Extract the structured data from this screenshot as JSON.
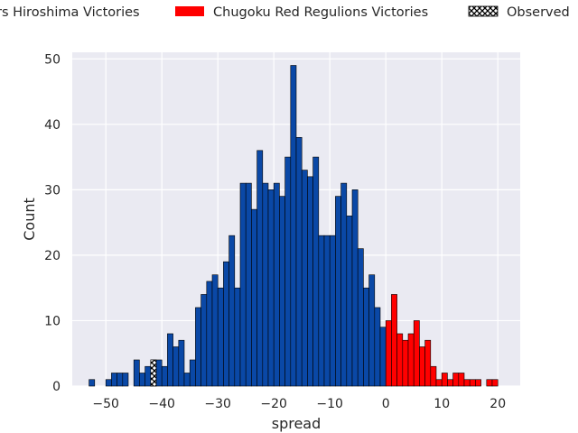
{
  "chart_data": {
    "type": "bar",
    "xlabel": "spread",
    "ylabel": "Count",
    "xlim": [
      -56,
      24
    ],
    "ylim": [
      0,
      51
    ],
    "x_ticks": [
      -50,
      -40,
      -30,
      -20,
      -10,
      0,
      10,
      20
    ],
    "y_ticks": [
      0,
      10,
      20,
      30,
      40,
      50
    ],
    "grid": true,
    "legend_placement": "top, above plot (cropped at left and right)",
    "bin_width": 1,
    "colors": {
      "background": "#eaeaf2",
      "grid": "#ffffff",
      "edge": "#000000"
    },
    "legend": [
      {
        "label": "rs Hiroshima Victories",
        "color": "#0a48a6",
        "swatch": "none"
      },
      {
        "label": "Chugoku Red Regulions Victories",
        "color": "#ff0000",
        "swatch": "rect"
      },
      {
        "label": "Observed",
        "color": "#000000",
        "swatch": "hatch"
      }
    ],
    "series": [
      {
        "name": "Hiroshima Victories",
        "color": "#0a48a6",
        "bins": [
          [
            -53,
            1
          ],
          [
            -50,
            1
          ],
          [
            -49,
            2
          ],
          [
            -48,
            2
          ],
          [
            -47,
            2
          ],
          [
            -45,
            4
          ],
          [
            -44,
            2
          ],
          [
            -43,
            3
          ],
          [
            -42,
            4
          ],
          [
            -41,
            4
          ],
          [
            -40,
            3
          ],
          [
            -39,
            8
          ],
          [
            -38,
            6
          ],
          [
            -37,
            7
          ],
          [
            -36,
            2
          ],
          [
            -35,
            4
          ],
          [
            -34,
            12
          ],
          [
            -33,
            14
          ],
          [
            -32,
            16
          ],
          [
            -31,
            17
          ],
          [
            -30,
            15
          ],
          [
            -29,
            19
          ],
          [
            -28,
            23
          ],
          [
            -27,
            15
          ],
          [
            -26,
            31
          ],
          [
            -25,
            31
          ],
          [
            -24,
            27
          ],
          [
            -23,
            36
          ],
          [
            -22,
            31
          ],
          [
            -21,
            30
          ],
          [
            -20,
            31
          ],
          [
            -19,
            29
          ],
          [
            -18,
            35
          ],
          [
            -17,
            49
          ],
          [
            -16,
            38
          ],
          [
            -15,
            33
          ],
          [
            -14,
            32
          ],
          [
            -13,
            35
          ],
          [
            -12,
            23
          ],
          [
            -11,
            23
          ],
          [
            -10,
            23
          ],
          [
            -9,
            29
          ],
          [
            -8,
            31
          ],
          [
            -7,
            26
          ],
          [
            -6,
            30
          ],
          [
            -5,
            21
          ],
          [
            -4,
            15
          ],
          [
            -3,
            17
          ],
          [
            -2,
            12
          ],
          [
            -1,
            9
          ]
        ]
      },
      {
        "name": "Chugoku Red Regulions Victories",
        "color": "#ff0000",
        "bins": [
          [
            0,
            10
          ],
          [
            1,
            14
          ],
          [
            2,
            8
          ],
          [
            3,
            7
          ],
          [
            4,
            8
          ],
          [
            5,
            10
          ],
          [
            6,
            6
          ],
          [
            7,
            7
          ],
          [
            8,
            3
          ],
          [
            9,
            1
          ],
          [
            10,
            2
          ],
          [
            11,
            1
          ],
          [
            12,
            2
          ],
          [
            13,
            2
          ],
          [
            14,
            1
          ],
          [
            15,
            1
          ],
          [
            16,
            1
          ],
          [
            18,
            1
          ],
          [
            19,
            1
          ]
        ]
      }
    ],
    "observed": {
      "x": -42,
      "value": 4,
      "pattern": "x-hatch"
    }
  }
}
